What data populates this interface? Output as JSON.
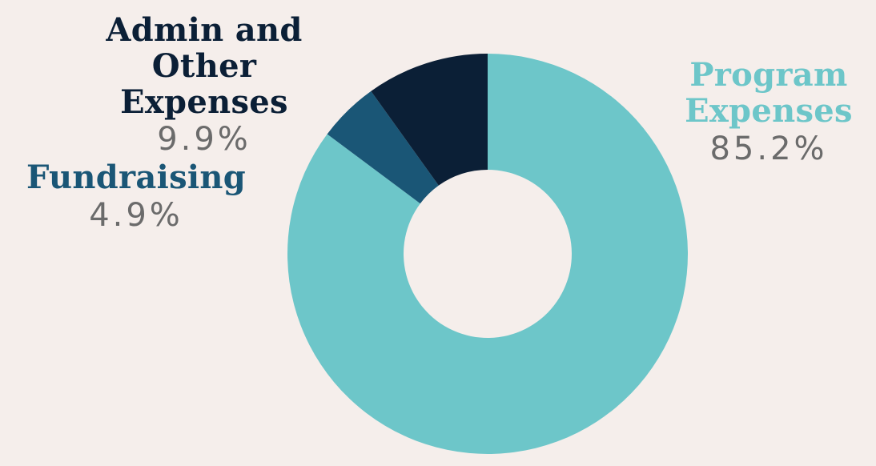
{
  "chart_data": {
    "type": "pie",
    "variant": "donut",
    "slices": [
      {
        "name": "Program Expenses",
        "name_lines": [
          "Program",
          "Expenses"
        ],
        "value": 85.2,
        "label": "85.2%",
        "color": "#6dc6c9"
      },
      {
        "name": "Fundraising",
        "name_lines": [
          "Fundraising"
        ],
        "value": 4.9,
        "label": "4.9%",
        "color": "#1a5676"
      },
      {
        "name": "Admin and Other Expenses",
        "name_lines": [
          "Admin and",
          "Other Expenses"
        ],
        "value": 9.9,
        "label": "9.9%",
        "color": "#0b1f36"
      }
    ],
    "legend": "none",
    "start_angle": "top",
    "direction": "clockwise",
    "background": "#f5eeeb"
  }
}
